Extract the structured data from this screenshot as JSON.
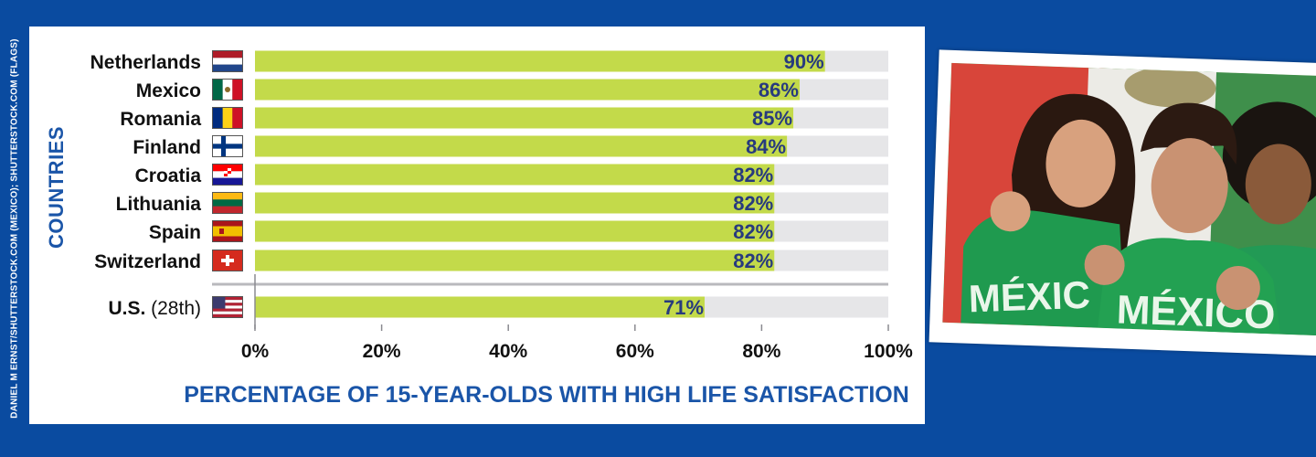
{
  "credit": "DANIEL M ERNST/SHUTTERSTOCK.COM (MEXICO); SHUTTERSTOCK.COM (FLAGS)",
  "chart_data": {
    "type": "bar",
    "orientation": "horizontal",
    "ylabel": "COUNTRIES",
    "xlabel": "PERCENTAGE OF 15-YEAR-OLDS WITH HIGH LIFE SATISFACTION",
    "xlim": [
      0,
      100
    ],
    "ticks": [
      "0%",
      "20%",
      "40%",
      "60%",
      "80%",
      "100%"
    ],
    "tick_values": [
      0,
      20,
      40,
      60,
      80,
      100
    ],
    "grid": false,
    "colors": {
      "bar": "#c3da4a",
      "track": "#e6e6e8",
      "value": "#273a7e",
      "axis_title": "#1a55a8"
    },
    "rows": [
      {
        "category": "Netherlands",
        "suffix": "",
        "value": 90,
        "label": "90%",
        "flag": "netherlands-flag-icon"
      },
      {
        "category": "Mexico",
        "suffix": "",
        "value": 86,
        "label": "86%",
        "flag": "mexico-flag-icon"
      },
      {
        "category": "Romania",
        "suffix": "",
        "value": 85,
        "label": "85%",
        "flag": "romania-flag-icon"
      },
      {
        "category": "Finland",
        "suffix": "",
        "value": 84,
        "label": "84%",
        "flag": "finland-flag-icon"
      },
      {
        "category": "Croatia",
        "suffix": "",
        "value": 82,
        "label": "82%",
        "flag": "croatia-flag-icon"
      },
      {
        "category": "Lithuania",
        "suffix": "",
        "value": 82,
        "label": "82%",
        "flag": "lithuania-flag-icon"
      },
      {
        "category": "Spain",
        "suffix": "",
        "value": 82,
        "label": "82%",
        "flag": "spain-flag-icon"
      },
      {
        "category": "Switzerland",
        "suffix": "",
        "value": 82,
        "label": "82%",
        "flag": "switzerland-flag-icon"
      },
      {
        "category": "U.S.",
        "suffix": "(28th)",
        "value": 71,
        "label": "71%",
        "flag": "usa-flag-icon"
      }
    ]
  },
  "photo": {
    "shirt_text_left": "MÉXIC",
    "shirt_text_right": "MÉXICO"
  }
}
